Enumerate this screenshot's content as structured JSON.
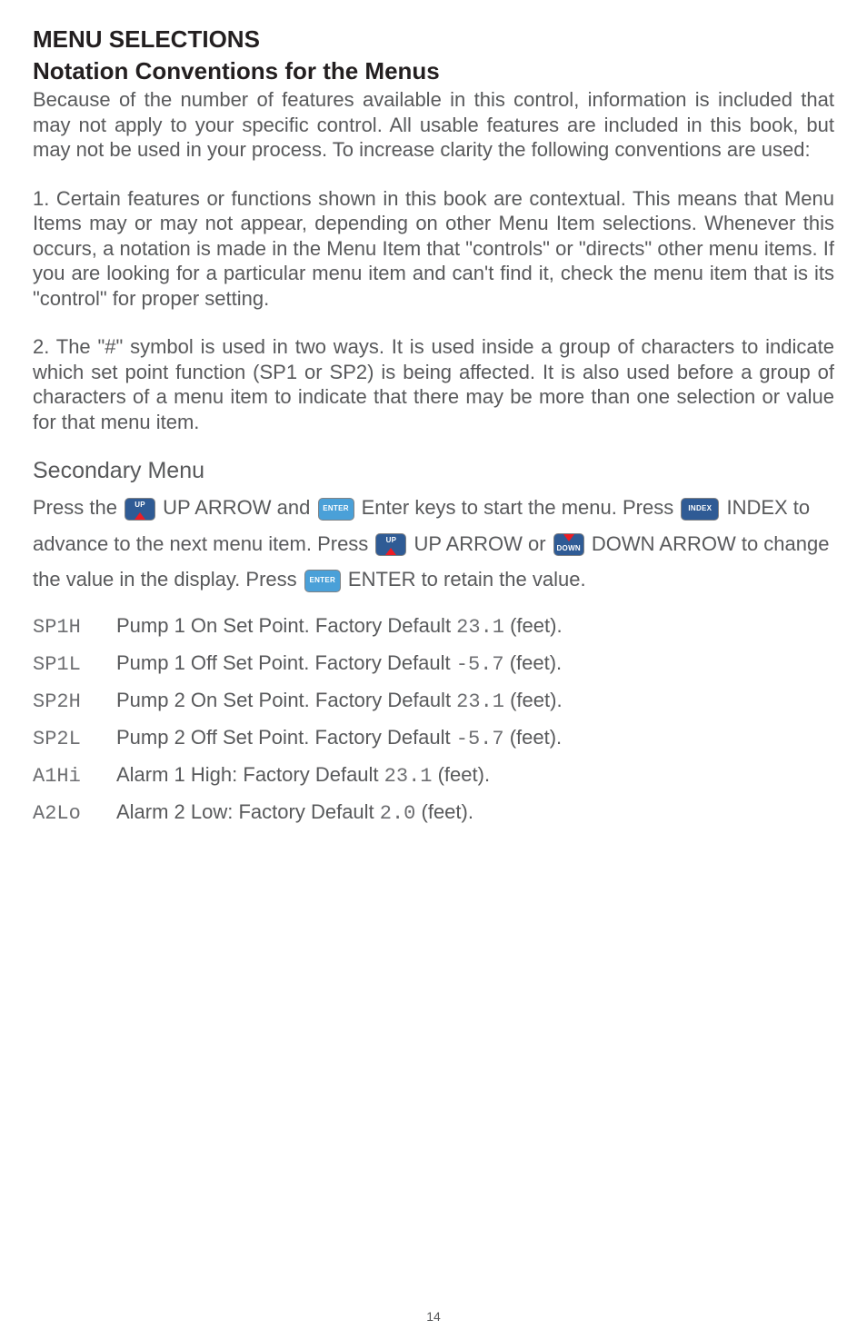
{
  "headings": {
    "title": "MENU SELECTIONS",
    "subtitle": "Notation Conventions for the Menus",
    "secondary": "Secondary Menu"
  },
  "paragraphs": {
    "intro": "Because of the number of features available in this control, information is included that may not apply to your specific control. All usable features are included in this book, but may not be used in your process. To increase clarity the following conventions are used:",
    "p1": "1. Certain features or functions shown in this book are contextual. This means that Menu Items may or may not appear, depending on other Menu Item selections. Whenever this occurs, a notation is made in the Menu Item that \"controls\" or \"directs\" other menu items. If you are looking for a  particular menu item and can't find it, check the menu item that is its \"control\" for proper setting.",
    "p2": "2. The \"#\" symbol is used in two ways. It is used inside a group of characters to indicate which set point function (SP1 or SP2) is being affected. It is also used before a group of characters of a menu item to indicate that there may be more than one selection or value for that menu item."
  },
  "flow": {
    "t1": "Press the ",
    "t2": " UP ARROW and ",
    "t3": " Enter keys to start the menu. Press ",
    "t4": " INDEX to advance to the next menu item. Press ",
    "t5": " UP ARROW or ",
    "t6": " DOWN ARROW to change the value in the display. Press ",
    "t7": " ENTER to retain the value."
  },
  "keys": {
    "up": "UP",
    "enter": "ENTER",
    "index": "INDEX",
    "down": "DOWN"
  },
  "items": [
    {
      "code": "SP1H",
      "pre": "Pump 1 On Set Point. Factory Default  ",
      "val": "23.1",
      "post": " (feet)."
    },
    {
      "code": "SP1L",
      "pre": "Pump 1 Off Set Point. Factory Default ",
      "val": "-5.7",
      "post": " (feet)."
    },
    {
      "code": "SP2H",
      "pre": "Pump 2 On Set Point. Factory Default  ",
      "val": "23.1",
      "post": " (feet)."
    },
    {
      "code": "SP2L",
      "pre": "Pump 2 Off Set Point. Factory Default ",
      "val": "-5.7",
      "post": " (feet)."
    },
    {
      "code": "A1Hi",
      "pre": "Alarm 1 High: Factory Default  ",
      "val": "23.1",
      "post": " (feet)."
    },
    {
      "code": "A2Lo",
      "pre": "Alarm 2 Low: Factory Default ",
      "val": "2.0",
      "post": "  (feet)."
    }
  ],
  "page_number": "14",
  "colors": {
    "text_dark": "#231f20",
    "text_body": "#58595b",
    "key_bg": "#2f5b95",
    "key_border": "#808285",
    "key_text": "#ffffff",
    "arrow": "#ed1c24",
    "enter_alt": "#4aa0d8"
  }
}
